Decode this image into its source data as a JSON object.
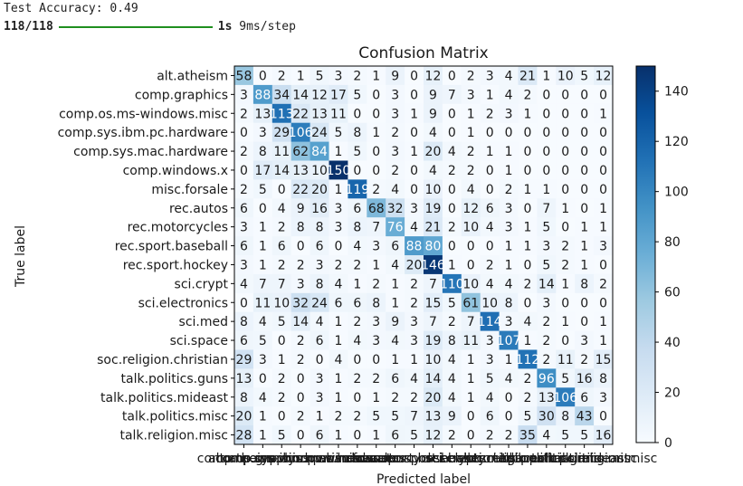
{
  "console": {
    "line1": "Test Accuracy: 0.49",
    "progress_steps": "118/118",
    "progress_fraction": 1.0,
    "time": "1s",
    "per_step": "9ms/step"
  },
  "chart_data": {
    "type": "heatmap",
    "title": "Confusion Matrix",
    "xlabel": "Predicted label",
    "ylabel": "True label",
    "colormap": "Blues",
    "colorbar": {
      "vmin": 0,
      "vmax": 150,
      "ticks": [
        0,
        20,
        40,
        60,
        80,
        100,
        120,
        140
      ]
    },
    "labels": [
      "alt.atheism",
      "comp.graphics",
      "comp.os.ms-windows.misc",
      "comp.sys.ibm.pc.hardware",
      "comp.sys.mac.hardware",
      "comp.windows.x",
      "misc.forsale",
      "rec.autos",
      "rec.motorcycles",
      "rec.sport.baseball",
      "rec.sport.hockey",
      "sci.crypt",
      "sci.electronics",
      "sci.med",
      "sci.space",
      "soc.religion.christian",
      "talk.politics.guns",
      "talk.politics.mideast",
      "talk.politics.misc",
      "talk.religion.misc"
    ],
    "matrix": [
      [
        58,
        0,
        2,
        1,
        5,
        3,
        2,
        1,
        9,
        0,
        12,
        0,
        2,
        3,
        4,
        21,
        1,
        10,
        5,
        12
      ],
      [
        3,
        88,
        34,
        14,
        12,
        17,
        5,
        0,
        3,
        0,
        9,
        7,
        3,
        1,
        4,
        2,
        0,
        0,
        0,
        0
      ],
      [
        2,
        13,
        113,
        22,
        13,
        11,
        0,
        0,
        3,
        1,
        9,
        0,
        1,
        2,
        3,
        1,
        0,
        0,
        0,
        1
      ],
      [
        0,
        3,
        29,
        106,
        24,
        5,
        8,
        1,
        2,
        0,
        4,
        0,
        1,
        0,
        0,
        0,
        0,
        0,
        0,
        0
      ],
      [
        2,
        8,
        11,
        62,
        84,
        1,
        5,
        0,
        3,
        1,
        20,
        4,
        2,
        1,
        1,
        0,
        0,
        0,
        0,
        0
      ],
      [
        0,
        17,
        14,
        13,
        10,
        150,
        0,
        0,
        2,
        0,
        4,
        2,
        2,
        0,
        1,
        0,
        0,
        0,
        0,
        0
      ],
      [
        2,
        5,
        0,
        22,
        20,
        1,
        119,
        2,
        4,
        0,
        10,
        0,
        4,
        0,
        2,
        1,
        1,
        0,
        0,
        0
      ],
      [
        6,
        0,
        4,
        9,
        16,
        3,
        6,
        68,
        32,
        3,
        19,
        0,
        12,
        6,
        3,
        0,
        7,
        1,
        0,
        1
      ],
      [
        3,
        1,
        2,
        8,
        8,
        3,
        8,
        7,
        76,
        4,
        21,
        2,
        10,
        4,
        3,
        1,
        5,
        0,
        1,
        1
      ],
      [
        6,
        1,
        6,
        0,
        6,
        0,
        4,
        3,
        6,
        88,
        80,
        0,
        0,
        0,
        1,
        1,
        3,
        2,
        1,
        3
      ],
      [
        3,
        1,
        2,
        2,
        3,
        2,
        2,
        1,
        4,
        20,
        146,
        1,
        0,
        2,
        1,
        0,
        5,
        2,
        1,
        0
      ],
      [
        4,
        7,
        7,
        3,
        8,
        4,
        1,
        2,
        1,
        2,
        7,
        110,
        10,
        4,
        4,
        2,
        14,
        1,
        8,
        2
      ],
      [
        0,
        11,
        10,
        32,
        24,
        6,
        6,
        8,
        1,
        2,
        15,
        5,
        61,
        10,
        8,
        0,
        3,
        0,
        0,
        0
      ],
      [
        8,
        4,
        5,
        14,
        4,
        1,
        2,
        3,
        9,
        3,
        7,
        2,
        7,
        114,
        3,
        4,
        2,
        1,
        0,
        1
      ],
      [
        6,
        5,
        0,
        2,
        6,
        1,
        4,
        3,
        4,
        3,
        19,
        8,
        11,
        3,
        107,
        1,
        2,
        0,
        3,
        1
      ],
      [
        29,
        3,
        1,
        2,
        0,
        4,
        0,
        0,
        1,
        1,
        10,
        4,
        1,
        3,
        1,
        112,
        2,
        11,
        2,
        15
      ],
      [
        13,
        0,
        2,
        0,
        3,
        1,
        2,
        2,
        6,
        4,
        14,
        4,
        1,
        5,
        4,
        2,
        96,
        5,
        16,
        8
      ],
      [
        8,
        4,
        2,
        0,
        3,
        1,
        0,
        1,
        2,
        2,
        20,
        4,
        1,
        4,
        0,
        2,
        13,
        106,
        6,
        3
      ],
      [
        20,
        1,
        0,
        2,
        1,
        2,
        2,
        5,
        5,
        7,
        13,
        9,
        0,
        6,
        0,
        5,
        30,
        8,
        43,
        0
      ],
      [
        28,
        1,
        5,
        0,
        6,
        1,
        0,
        1,
        6,
        5,
        12,
        2,
        0,
        2,
        2,
        35,
        4,
        5,
        5,
        16
      ]
    ]
  }
}
